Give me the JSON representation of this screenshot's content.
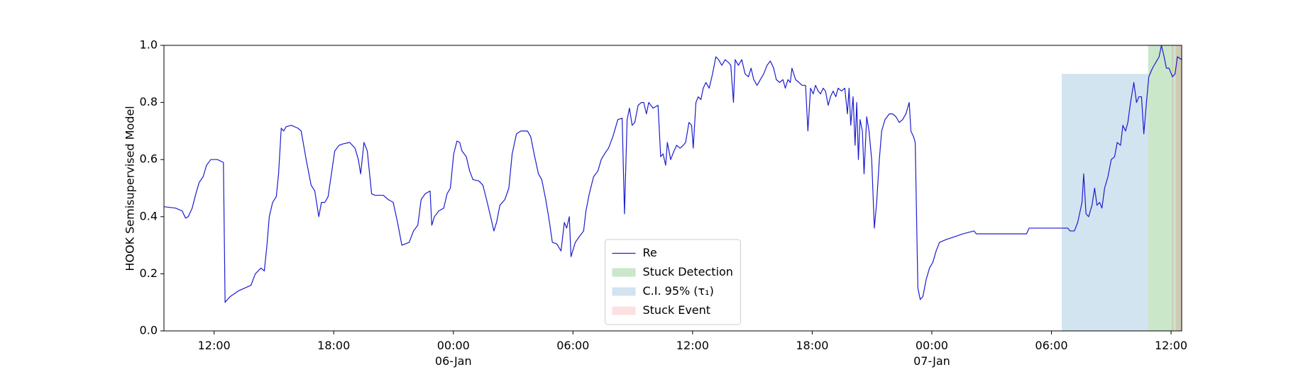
{
  "chart_data": {
    "type": "line",
    "ylabel": "HOOK Semisupervised Model",
    "xlim": [
      "1900-01-05T09:29",
      "1900-01-07T12:32"
    ],
    "xticks": [
      {
        "value": "1900-01-05T12:00",
        "label": "12:00"
      },
      {
        "value": "1900-01-05T18:00",
        "label": "18:00"
      },
      {
        "value": "1900-01-06T00:00",
        "label": "00:00\n06-Jan\n1900"
      },
      {
        "value": "1900-01-06T06:00",
        "label": "06:00"
      },
      {
        "value": "1900-01-06T12:00",
        "label": "12:00"
      },
      {
        "value": "1900-01-06T18:00",
        "label": "18:00"
      },
      {
        "value": "1900-01-07T00:00",
        "label": "00:00\n07-Jan"
      },
      {
        "value": "1900-01-07T06:00",
        "label": "06:00"
      },
      {
        "value": "1900-01-07T12:00",
        "label": "12:00"
      }
    ],
    "ylim": [
      0,
      1
    ],
    "yticks": [
      {
        "value": 0,
        "label": "0.0"
      },
      0.2,
      0.4,
      0.6,
      0.8,
      {
        "value": 1,
        "label": "1.0"
      }
    ],
    "legend": "lower center",
    "x": [
      "1900-01-05T09:29",
      "1900-01-05T10:04",
      "1900-01-05T10:24",
      "1900-01-05T10:34",
      "1900-01-05T10:42",
      "1900-01-05T10:54",
      "1900-01-05T11:05",
      "1900-01-05T11:15",
      "1900-01-05T11:27",
      "1900-01-05T11:37",
      "1900-01-05T11:50",
      "1900-01-05T12:10",
      "1900-01-05T12:28",
      "1900-01-05T12:33",
      "1900-01-05T12:48",
      "1900-01-05T13:13",
      "1900-01-05T13:51",
      "1900-01-05T14:04",
      "1900-01-05T14:21",
      "1900-01-05T14:31",
      "1900-01-05T14:39",
      "1900-01-05T14:46",
      "1900-01-05T14:56",
      "1900-01-05T15:07",
      "1900-01-05T15:14",
      "1900-01-05T15:22",
      "1900-01-05T15:29",
      "1900-01-05T15:37",
      "1900-01-05T15:52",
      "1900-01-05T16:12",
      "1900-01-05T16:22",
      "1900-01-05T16:37",
      "1900-01-05T16:52",
      "1900-01-05T17:03",
      "1900-01-05T17:15",
      "1900-01-05T17:23",
      "1900-01-05T17:33",
      "1900-01-05T17:43",
      "1900-01-05T17:53",
      "1900-01-05T18:03",
      "1900-01-05T18:16",
      "1900-01-05T18:28",
      "1900-01-05T18:48",
      "1900-01-05T19:04",
      "1900-01-05T19:14",
      "1900-01-05T19:21",
      "1900-01-05T19:31",
      "1900-01-05T19:41",
      "1900-01-05T19:54",
      "1900-01-05T20:04",
      "1900-01-05T20:29",
      "1900-01-05T20:44",
      "1900-01-05T20:59",
      "1900-01-05T21:12",
      "1900-01-05T21:25",
      "1900-01-05T21:47",
      "1900-01-05T22:00",
      "1900-01-05T22:13",
      "1900-01-05T22:23",
      "1900-01-05T22:35",
      "1900-01-05T22:50",
      "1900-01-05T22:55",
      "1900-01-05T23:03",
      "1900-01-05T23:16",
      "1900-01-05T23:31",
      "1900-01-05T23:41",
      "1900-01-05T23:51",
      "1900-01-06T00:01",
      "1900-01-06T00:11",
      "1900-01-06T00:19",
      "1900-01-06T00:26",
      "1900-01-06T00:39",
      "1900-01-06T00:49",
      "1900-01-06T00:59",
      "1900-01-06T01:17",
      "1900-01-06T01:29",
      "1900-01-06T01:42",
      "1900-01-06T01:52",
      "1900-01-06T02:02",
      "1900-01-06T02:10",
      "1900-01-06T02:20",
      "1900-01-06T02:35",
      "1900-01-06T02:47",
      "1900-01-06T02:57",
      "1900-01-06T03:10",
      "1900-01-06T03:23",
      "1900-01-06T03:43",
      "1900-01-06T03:53",
      "1900-01-06T04:03",
      "1900-01-06T04:16",
      "1900-01-06T04:26",
      "1900-01-06T04:38",
      "1900-01-06T04:48",
      "1900-01-06T04:58",
      "1900-01-06T05:11",
      "1900-01-06T05:24",
      "1900-01-06T05:34",
      "1900-01-06T05:41",
      "1900-01-06T05:49",
      "1900-01-06T05:54",
      "1900-01-06T06:07",
      "1900-01-06T06:19",
      "1900-01-06T06:32",
      "1900-01-06T06:39",
      "1900-01-06T06:49",
      "1900-01-06T07:02",
      "1900-01-06T07:15",
      "1900-01-06T07:25",
      "1900-01-06T07:35",
      "1900-01-06T07:47",
      "1900-01-06T08:00",
      "1900-01-06T08:15",
      "1900-01-06T08:28",
      "1900-01-06T08:35",
      "1900-01-06T08:43",
      "1900-01-06T08:50",
      "1900-01-06T08:58",
      "1900-01-06T09:06",
      "1900-01-06T09:16",
      "1900-01-06T09:26",
      "1900-01-06T09:33",
      "1900-01-06T09:41",
      "1900-01-06T09:48",
      "1900-01-06T10:01",
      "1900-01-06T10:16",
      "1900-01-06T10:24",
      "1900-01-06T10:31",
      "1900-01-06T10:39",
      "1900-01-06T10:44",
      "1900-01-06T10:54",
      "1900-01-06T11:04",
      "1900-01-06T11:12",
      "1900-01-06T11:22",
      "1900-01-06T11:32",
      "1900-01-06T11:39",
      "1900-01-06T11:49",
      "1900-01-06T11:57",
      "1900-01-06T12:02",
      "1900-01-06T12:10",
      "1900-01-06T12:17",
      "1900-01-06T12:25",
      "1900-01-06T12:32",
      "1900-01-06T12:40",
      "1900-01-06T12:50",
      "1900-01-06T13:00",
      "1900-01-06T13:10",
      "1900-01-06T13:18",
      "1900-01-06T13:28",
      "1900-01-06T13:38",
      "1900-01-06T13:48",
      "1900-01-06T13:55",
      "1900-01-06T14:03",
      "1900-01-06T14:08",
      "1900-01-06T14:18",
      "1900-01-06T14:28",
      "1900-01-06T14:38",
      "1900-01-06T14:48",
      "1900-01-06T14:56",
      "1900-01-06T15:04",
      "1900-01-06T15:14",
      "1900-01-06T15:24",
      "1900-01-06T15:34",
      "1900-01-06T15:44",
      "1900-01-06T15:54",
      "1900-01-06T16:04",
      "1900-01-06T16:12",
      "1900-01-06T16:22",
      "1900-01-06T16:32",
      "1900-01-06T16:39",
      "1900-01-06T16:47",
      "1900-01-06T16:54",
      "1900-01-06T16:59",
      "1900-01-06T17:10",
      "1900-01-06T17:20",
      "1900-01-06T17:30",
      "1900-01-06T17:40",
      "1900-01-06T17:47",
      "1900-01-06T17:55",
      "1900-01-06T18:03",
      "1900-01-06T18:10",
      "1900-01-06T18:18",
      "1900-01-06T18:25",
      "1900-01-06T18:33",
      "1900-01-06T18:40",
      "1900-01-06T18:48",
      "1900-01-06T18:55",
      "1900-01-06T19:03",
      "1900-01-06T19:11",
      "1900-01-06T19:18",
      "1900-01-06T19:28",
      "1900-01-06T19:38",
      "1900-01-06T19:46",
      "1900-01-06T19:51",
      "1900-01-06T19:56",
      "1900-01-06T20:03",
      "1900-01-06T20:09",
      "1900-01-06T20:14",
      "1900-01-06T20:19",
      "1900-01-06T20:24",
      "1900-01-06T20:31",
      "1900-01-06T20:36",
      "1900-01-06T20:44",
      "1900-01-06T20:51",
      "1900-01-06T20:59",
      "1900-01-06T21:07",
      "1900-01-06T21:14",
      "1900-01-06T21:22",
      "1900-01-06T21:29",
      "1900-01-06T21:39",
      "1900-01-06T21:52",
      "1900-01-06T22:02",
      "1900-01-06T22:12",
      "1900-01-06T22:22",
      "1900-01-06T22:32",
      "1900-01-06T22:42",
      "1900-01-06T22:52",
      "1900-01-06T22:57",
      "1900-01-06T23:05",
      "1900-01-06T23:10",
      "1900-01-06T23:18",
      "1900-01-06T23:25",
      "1900-01-06T23:33",
      "1900-01-06T23:43",
      "1900-01-06T23:53",
      "1900-01-07T00:03",
      "1900-01-07T00:13",
      "1900-01-07T00:23",
      "1900-01-07T00:43",
      "1900-01-07T01:09",
      "1900-01-07T01:34",
      "1900-01-07T02:07",
      "1900-01-07T02:14",
      "1900-01-07T03:40",
      "1900-01-07T04:45",
      "1900-01-07T04:53",
      "1900-01-07T06:49",
      "1900-01-07T06:56",
      "1900-01-07T07:09",
      "1900-01-07T07:19",
      "1900-01-07T07:32",
      "1900-01-07T07:37",
      "1900-01-07T07:44",
      "1900-01-07T07:52",
      "1900-01-07T08:02",
      "1900-01-07T08:10",
      "1900-01-07T08:17",
      "1900-01-07T08:25",
      "1900-01-07T08:32",
      "1900-01-07T08:40",
      "1900-01-07T08:50",
      "1900-01-07T09:00",
      "1900-01-07T09:10",
      "1900-01-07T09:18",
      "1900-01-07T09:28",
      "1900-01-07T09:35",
      "1900-01-07T09:43",
      "1900-01-07T09:50",
      "1900-01-07T09:58",
      "1900-01-07T10:08",
      "1900-01-07T10:16",
      "1900-01-07T10:23",
      "1900-01-07T10:31",
      "1900-01-07T10:38",
      "1900-01-07T10:46",
      "1900-01-07T10:53",
      "1900-01-07T11:04",
      "1900-01-07T11:14",
      "1900-01-07T11:24",
      "1900-01-07T11:31",
      "1900-01-07T11:39",
      "1900-01-07T11:46",
      "1900-01-07T11:54",
      "1900-01-07T12:04",
      "1900-01-07T12:12",
      "1900-01-07T12:19",
      "1900-01-07T12:32"
    ],
    "series": [
      {
        "name": "Re",
        "color": "#1c1cd0",
        "values": [
          0.435,
          0.43,
          0.42,
          0.395,
          0.4,
          0.43,
          0.48,
          0.52,
          0.54,
          0.58,
          0.6,
          0.6,
          0.59,
          0.1,
          0.12,
          0.14,
          0.16,
          0.2,
          0.22,
          0.21,
          0.3,
          0.4,
          0.45,
          0.47,
          0.55,
          0.71,
          0.7,
          0.715,
          0.72,
          0.71,
          0.7,
          0.6,
          0.51,
          0.49,
          0.4,
          0.45,
          0.45,
          0.47,
          0.55,
          0.63,
          0.65,
          0.655,
          0.66,
          0.64,
          0.6,
          0.55,
          0.66,
          0.63,
          0.48,
          0.475,
          0.475,
          0.46,
          0.45,
          0.38,
          0.3,
          0.31,
          0.35,
          0.37,
          0.46,
          0.48,
          0.49,
          0.37,
          0.4,
          0.42,
          0.43,
          0.48,
          0.5,
          0.62,
          0.665,
          0.66,
          0.63,
          0.61,
          0.56,
          0.53,
          0.525,
          0.51,
          0.45,
          0.4,
          0.35,
          0.38,
          0.44,
          0.46,
          0.5,
          0.62,
          0.69,
          0.7,
          0.7,
          0.68,
          0.62,
          0.55,
          0.53,
          0.46,
          0.39,
          0.31,
          0.305,
          0.28,
          0.38,
          0.36,
          0.4,
          0.26,
          0.31,
          0.33,
          0.35,
          0.42,
          0.48,
          0.54,
          0.56,
          0.6,
          0.62,
          0.64,
          0.68,
          0.74,
          0.745,
          0.41,
          0.74,
          0.78,
          0.72,
          0.73,
          0.79,
          0.8,
          0.8,
          0.76,
          0.8,
          0.78,
          0.79,
          0.61,
          0.62,
          0.58,
          0.66,
          0.6,
          0.63,
          0.65,
          0.64,
          0.65,
          0.66,
          0.73,
          0.72,
          0.64,
          0.8,
          0.82,
          0.81,
          0.85,
          0.87,
          0.85,
          0.9,
          0.96,
          0.95,
          0.93,
          0.95,
          0.94,
          0.93,
          0.8,
          0.95,
          0.93,
          0.95,
          0.9,
          0.89,
          0.92,
          0.88,
          0.86,
          0.88,
          0.9,
          0.93,
          0.945,
          0.92,
          0.88,
          0.87,
          0.88,
          0.85,
          0.88,
          0.87,
          0.92,
          0.88,
          0.87,
          0.86,
          0.86,
          0.7,
          0.85,
          0.83,
          0.86,
          0.84,
          0.83,
          0.85,
          0.84,
          0.79,
          0.82,
          0.84,
          0.82,
          0.85,
          0.84,
          0.85,
          0.76,
          0.85,
          0.72,
          0.82,
          0.65,
          0.8,
          0.6,
          0.74,
          0.7,
          0.55,
          0.75,
          0.7,
          0.6,
          0.36,
          0.45,
          0.6,
          0.7,
          0.74,
          0.76,
          0.76,
          0.75,
          0.73,
          0.74,
          0.76,
          0.8,
          0.7,
          0.68,
          0.66,
          0.15,
          0.11,
          0.12,
          0.18,
          0.22,
          0.24,
          0.28,
          0.31,
          0.32,
          0.33,
          0.34,
          0.35,
          0.34,
          0.34,
          0.34,
          0.36,
          0.36,
          0.35,
          0.35,
          0.38,
          0.45,
          0.55,
          0.41,
          0.4,
          0.44,
          0.5,
          0.44,
          0.45,
          0.43,
          0.5,
          0.54,
          0.6,
          0.61,
          0.66,
          0.65,
          0.72,
          0.7,
          0.73,
          0.8,
          0.87,
          0.8,
          0.82,
          0.82,
          0.69,
          0.8,
          0.89,
          0.92,
          0.94,
          0.96,
          1.0,
          0.96,
          0.92,
          0.92,
          0.89,
          0.9,
          0.96,
          0.95
        ]
      }
    ],
    "spans": [
      {
        "name": "Stuck Detection",
        "color": "#2ca02c",
        "alpha": 0.25,
        "ranges": [
          [
            "1900-01-07T10:51",
            "1900-01-07T12:32"
          ]
        ]
      },
      {
        "name": "C.I. 95% (τ₁)",
        "color": "#1f77b4",
        "alpha": 0.2,
        "y": [
          0,
          0.9
        ],
        "ranges": [
          [
            "1900-01-07T06:31",
            "1900-01-07T10:51"
          ]
        ]
      },
      {
        "name": "Stuck Event",
        "color": "#e8303a",
        "alpha": 0.15,
        "ranges": [
          [
            "1900-01-07T12:02",
            "1900-01-07T12:07"
          ],
          [
            "1900-01-07T12:14",
            "1900-01-07T12:32"
          ]
        ]
      }
    ]
  }
}
